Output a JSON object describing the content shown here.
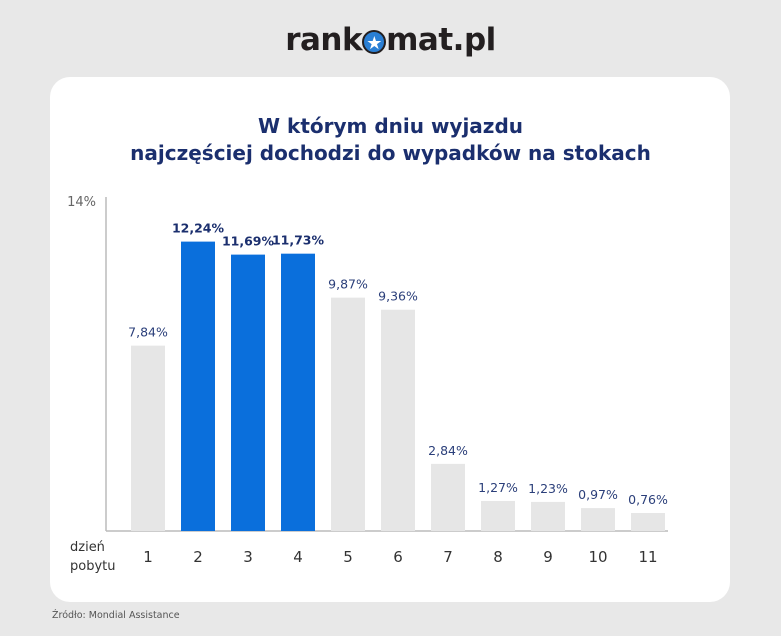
{
  "logo": {
    "text_left": "rank",
    "text_right": "mat.pl"
  },
  "chart_data": {
    "type": "bar",
    "title": "W którym dniu wyjazdu najczęściej dochodzi do wypadków na stokach",
    "title_lines": [
      "W którym dniu wyjazdu",
      "najczęściej dochodzi do wypadków na stokach"
    ],
    "xlabel_lines": [
      "dzień",
      "pobytu"
    ],
    "categories": [
      "1",
      "2",
      "3",
      "4",
      "5",
      "6",
      "7",
      "8",
      "9",
      "10",
      "11"
    ],
    "values": [
      7.84,
      12.24,
      11.69,
      11.73,
      9.87,
      9.36,
      2.84,
      1.27,
      1.23,
      0.97,
      0.76
    ],
    "labels": [
      "7,84%",
      "12,24%",
      "11,69%",
      "11,73%",
      "9,87%",
      "9,36%",
      "2,84%",
      "1,27%",
      "1,23%",
      "0,97%",
      "0,76%"
    ],
    "highlighted": [
      false,
      true,
      true,
      true,
      false,
      false,
      false,
      false,
      false,
      false,
      false
    ],
    "ylim": [
      0,
      14
    ],
    "ytick_label": "14%",
    "grid": false,
    "colors": {
      "highlight": "#0a6fdc",
      "default": "#e6e6e6",
      "highlight_label": "#1b2f6e",
      "default_label": "#2b3f7a"
    }
  },
  "source": "Źródło: Mondial Assistance"
}
